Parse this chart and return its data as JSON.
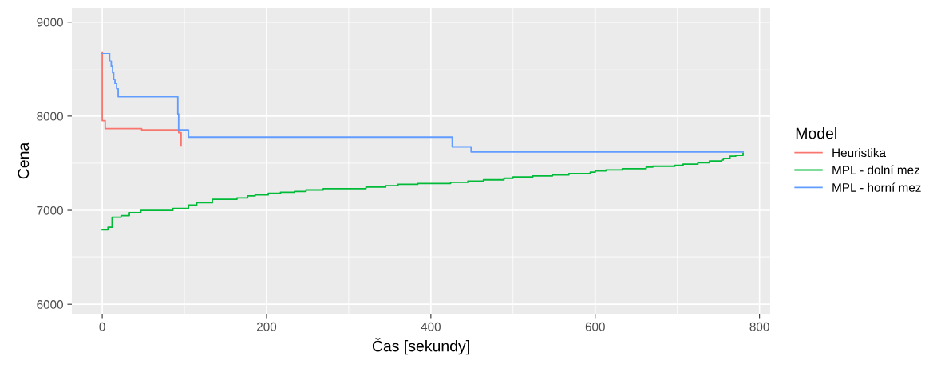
{
  "chart_data": {
    "type": "step",
    "xlabel": "Čas [sekundy]",
    "ylabel": "Cena",
    "legend_title": "Model",
    "legend": "right",
    "grid": true,
    "xlim": [
      -37,
      813
    ],
    "ylim": [
      5900,
      9150
    ],
    "xticks": [
      0,
      200,
      400,
      600,
      800
    ],
    "yticks": [
      6000,
      7000,
      8000,
      9000
    ],
    "series": [
      {
        "name": "Heuristika",
        "color": "#f8766d",
        "x": [
          0,
          0,
          3.6,
          48,
          93,
          96
        ],
        "values": [
          8678,
          7952,
          7867,
          7853,
          7825,
          7692
        ]
      },
      {
        "name": "MPL - dolní mez",
        "color": "#00ba38",
        "x": [
          0,
          7,
          12,
          23,
          33,
          47,
          86,
          105,
          115,
          134,
          164,
          177,
          186,
          202,
          217,
          234,
          248,
          269,
          321,
          345,
          360,
          384,
          424,
          445,
          464,
          489,
          500,
          524,
          548,
          568,
          594,
          600,
          613,
          633,
          662,
          670,
          697,
          707,
          725,
          739,
          754,
          756,
          764,
          771,
          780
        ],
        "values": [
          6794,
          6822,
          6928,
          6945,
          6975,
          7000,
          7020,
          7056,
          7081,
          7118,
          7133,
          7153,
          7164,
          7181,
          7192,
          7201,
          7216,
          7230,
          7246,
          7262,
          7276,
          7285,
          7298,
          7311,
          7324,
          7341,
          7354,
          7366,
          7376,
          7390,
          7405,
          7419,
          7428,
          7441,
          7458,
          7468,
          7477,
          7490,
          7506,
          7523,
          7535,
          7552,
          7574,
          7584,
          7607
        ]
      },
      {
        "name": "MPL - horní mez",
        "color": "#619cff",
        "x": [
          0,
          9,
          11,
          12.6,
          13.9,
          15.5,
          17.5,
          19.4,
          92,
          93,
          105,
          426,
          449,
          780
        ],
        "values": [
          8667,
          8587,
          8531,
          8460,
          8390,
          8347,
          8291,
          8206,
          8023,
          7853,
          7777,
          7673,
          7620,
          7620
        ]
      }
    ]
  }
}
